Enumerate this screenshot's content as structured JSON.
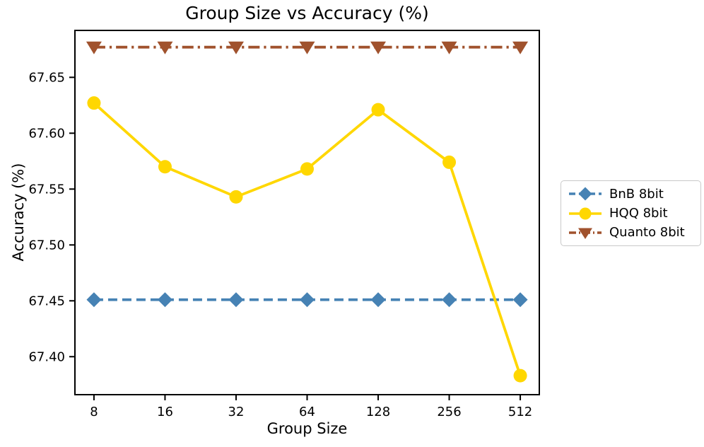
{
  "figure": {
    "background_color": "#ffffff",
    "text_color": "#000000"
  },
  "chart_data": {
    "type": "line",
    "title": "Group Size vs Accuracy (%)",
    "xlabel": "Group Size",
    "ylabel": "Accuracy (%)",
    "categories": [
      8,
      16,
      32,
      64,
      128,
      256,
      512
    ],
    "x_tick_labels": [
      "8",
      "16",
      "32",
      "64",
      "128",
      "256",
      "512"
    ],
    "x_axis_scale": "log2-categorical (evenly spaced powers of two)",
    "y_ticks": [
      67.4,
      67.45,
      67.5,
      67.55,
      67.6,
      67.65
    ],
    "y_tick_labels": [
      "67.40",
      "67.45",
      "67.50",
      "67.55",
      "67.60",
      "67.65"
    ],
    "ylim": [
      67.366,
      67.692
    ],
    "grid": false,
    "legend_position": "outside-right-center",
    "series": [
      {
        "name": "BnB 8bit",
        "color": "#4682B4",
        "linestyle": "dashed",
        "marker": "diamond",
        "values": [
          67.451,
          67.451,
          67.451,
          67.451,
          67.451,
          67.451,
          67.451
        ]
      },
      {
        "name": "HQQ 8bit",
        "color": "#FFD700",
        "linestyle": "solid",
        "marker": "circle",
        "values": [
          67.627,
          67.57,
          67.543,
          67.568,
          67.621,
          67.574,
          67.383
        ]
      },
      {
        "name": "Quanto 8bit",
        "color": "#A0522D",
        "linestyle": "dashdot",
        "marker": "triangle-down",
        "values": [
          67.677,
          67.677,
          67.677,
          67.677,
          67.677,
          67.677,
          67.677
        ]
      }
    ]
  }
}
